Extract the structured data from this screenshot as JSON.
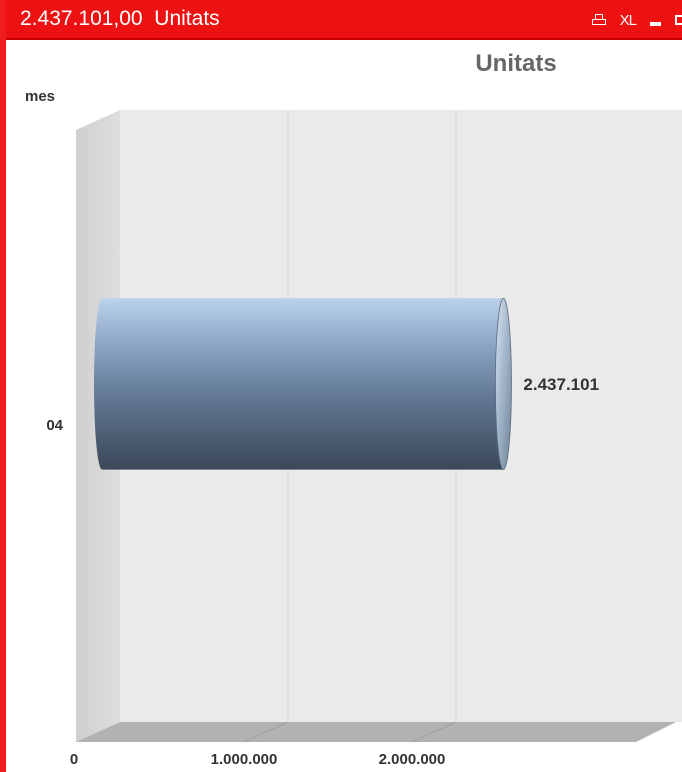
{
  "window": {
    "title_value": "2.437.101,00",
    "title_label": "Unitats",
    "controls": {
      "print_icon": "print-icon",
      "xl_label": "XL",
      "minimize_icon": "minimize-icon",
      "maximize_icon": "maximize-icon"
    },
    "colors": {
      "titlebar": "#ee1111",
      "border": "#ee1c1c"
    }
  },
  "chart_data": {
    "type": "bar",
    "orientation": "horizontal",
    "style": "3d-cylinder",
    "title": "Unitats",
    "dimension_label": "mes",
    "categories": [
      "04"
    ],
    "values": [
      2437101
    ],
    "value_labels": [
      "2.437.101"
    ],
    "xlim": [
      0,
      3000000
    ],
    "x_ticks": [
      {
        "value": 0,
        "label": "0"
      },
      {
        "value": 1000000,
        "label": "1.000.000"
      },
      {
        "value": 2000000,
        "label": "2.000.000"
      }
    ],
    "grid": true,
    "colors": {
      "bar_light": "#b9d0e9",
      "bar_dark": "#3c4a5b",
      "wall": "#eaeaea",
      "floor": "#b2b2b2"
    }
  }
}
